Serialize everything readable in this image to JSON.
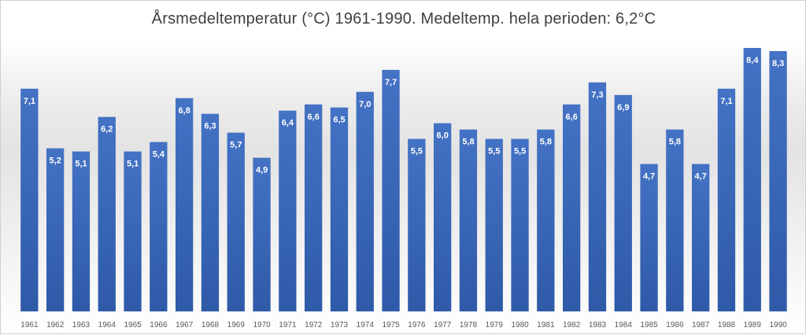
{
  "chart_data": {
    "type": "bar",
    "title": "Årsmedeltemperatur (°C) 1961-1990.  Medeltemp. hela perioden: 6,2°C",
    "categories": [
      "1961",
      "1962",
      "1963",
      "1964",
      "1965",
      "1966",
      "1967",
      "1968",
      "1969",
      "1970",
      "1971",
      "1972",
      "1973",
      "1974",
      "1975",
      "1976",
      "1977",
      "1978",
      "1979",
      "1980",
      "1981",
      "1982",
      "1983",
      "1984",
      "1985",
      "1986",
      "1987",
      "1988",
      "1989",
      "1990"
    ],
    "values": [
      7.1,
      5.2,
      5.1,
      6.2,
      5.1,
      5.4,
      6.8,
      6.3,
      5.7,
      4.9,
      6.4,
      6.6,
      6.5,
      7.0,
      7.7,
      5.5,
      6.0,
      5.8,
      5.5,
      5.5,
      5.8,
      6.6,
      7.3,
      6.9,
      4.7,
      5.8,
      4.7,
      7.1,
      8.4,
      8.3
    ],
    "value_labels": [
      "7,1",
      "5,2",
      "5,1",
      "6,2",
      "5,1",
      "5,4",
      "6,8",
      "6,3",
      "5,7",
      "4,9",
      "6,4",
      "6,6",
      "6,5",
      "7,0",
      "7,7",
      "5,5",
      "6,0",
      "5,8",
      "5,5",
      "5,5",
      "5,8",
      "6,6",
      "7,3",
      "6,9",
      "4,7",
      "5,8",
      "4,7",
      "7,1",
      "8,4",
      "8,3"
    ],
    "xlabel": "",
    "ylabel": "",
    "ylim": [
      0,
      8.7
    ],
    "grid": false,
    "legend": "none",
    "bar_color": "#4472c4",
    "bar_color_dark": "#2e5aa8",
    "label_color": "#ffffff",
    "tick_color": "#595959"
  }
}
